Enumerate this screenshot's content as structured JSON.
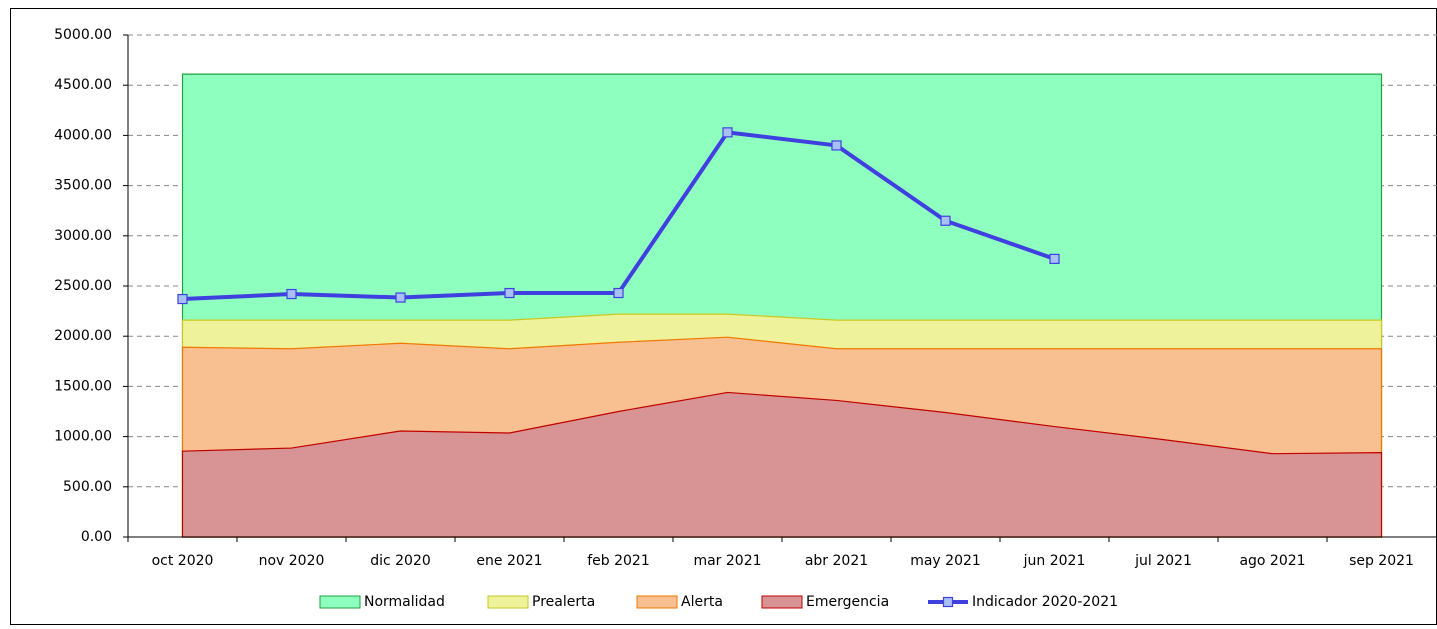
{
  "chart_data": {
    "type": "area",
    "categories": [
      "oct 2020",
      "nov 2020",
      "dic 2020",
      "ene 2021",
      "feb 2021",
      "mar 2021",
      "abr 2021",
      "may 2021",
      "jun 2021",
      "jul 2021",
      "ago 2021",
      "sep 2021"
    ],
    "series": [
      {
        "name": "Normalidad",
        "color": "#8fffc0",
        "stroke": "#20a040",
        "values": [
          4610,
          4610,
          4610,
          4610,
          4610,
          4610,
          4610,
          4610,
          4610,
          4610,
          4610,
          4610
        ]
      },
      {
        "name": "Prealerta",
        "color": "#eef29a",
        "stroke": "#c8c820",
        "values": [
          2160,
          2160,
          2160,
          2160,
          2220,
          2220,
          2160,
          2160,
          2160,
          2160,
          2160,
          2160
        ]
      },
      {
        "name": "Alerta",
        "color": "#f8c090",
        "stroke": "#f07800",
        "values": [
          1890,
          1875,
          1930,
          1875,
          1940,
          1990,
          1875,
          1875,
          1875,
          1875,
          1875,
          1875
        ]
      },
      {
        "name": "Emergencia",
        "color": "#d89494",
        "stroke": "#c00000",
        "values": [
          855,
          886,
          1056,
          1036,
          1250,
          1440,
          1360,
          1240,
          1100,
          970,
          830,
          840
        ]
      },
      {
        "name": "Indicador 2020-2021",
        "type": "line",
        "color": "#4040e0",
        "marker_color": "#a8c0f8",
        "values": [
          2370,
          2420,
          2385,
          2430,
          2430,
          4030,
          3900,
          3150,
          2770,
          null,
          null,
          null
        ]
      }
    ],
    "ylim": [
      0,
      5000
    ],
    "yticks": [
      {
        "value": 0,
        "label": "0.00"
      },
      {
        "value": 500,
        "label": "500.00"
      },
      {
        "value": 1000,
        "label": "1000.00"
      },
      {
        "value": 1500,
        "label": "1500.00"
      },
      {
        "value": 2000,
        "label": "2000.00"
      },
      {
        "value": 2500,
        "label": "2500.00"
      },
      {
        "value": 3000,
        "label": "3000.00"
      },
      {
        "value": 3500,
        "label": "3500.00"
      },
      {
        "value": 4000,
        "label": "4000.00"
      },
      {
        "value": 4500,
        "label": "4500.00"
      },
      {
        "value": 5000,
        "label": "5000.00"
      }
    ],
    "grid": true,
    "legend": "bottom"
  }
}
